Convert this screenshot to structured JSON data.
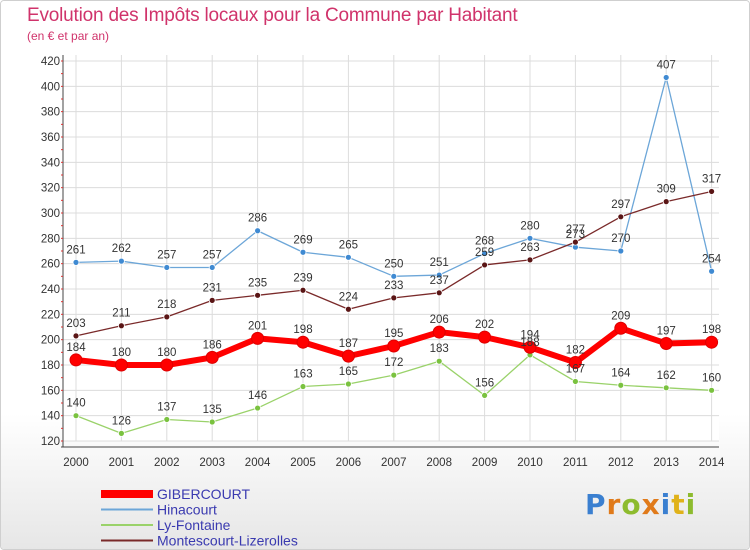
{
  "header": {
    "title": "Evolution des Impôts locaux pour la Commune par Habitant",
    "subtitle": "(en € et par an)"
  },
  "logo": {
    "p": "P",
    "r": "r",
    "o": "o",
    "x": "x",
    "i": "i",
    "t": "t",
    "i2": "i"
  },
  "chart_data": {
    "type": "line",
    "title": "Evolution des Impôts locaux pour la Commune par Habitant",
    "subtitle": "(en € et par an)",
    "xlabel": "",
    "ylabel": "",
    "ylim": [
      120,
      420
    ],
    "yticks": [
      120,
      140,
      160,
      180,
      200,
      220,
      240,
      260,
      280,
      300,
      320,
      340,
      360,
      380,
      400,
      420
    ],
    "grid": true,
    "legend_position": "bottom-left",
    "x": [
      "2000",
      "2001",
      "2002",
      "2003",
      "2004",
      "2005",
      "2006",
      "2007",
      "2008",
      "2009",
      "2010",
      "2011",
      "2012",
      "2013",
      "2014"
    ],
    "series": [
      {
        "name": "GIBERCOURT",
        "color": "#ff0000",
        "labelColor": "#333333",
        "emphasis": true,
        "values": [
          184,
          180,
          180,
          186,
          201,
          198,
          187,
          195,
          206,
          202,
          194,
          182,
          209,
          197,
          198
        ]
      },
      {
        "name": "Hinacourt",
        "color": "#6ca6d8",
        "dot": "#3f8ad2",
        "labelColor": "#333333",
        "values": [
          261,
          262,
          257,
          257,
          286,
          269,
          265,
          250,
          251,
          268,
          280,
          273,
          270,
          407,
          254
        ]
      },
      {
        "name": "Ly-Fontaine",
        "color": "#9ad26a",
        "dot": "#7ac23f",
        "labelColor": "#333333",
        "values": [
          140,
          126,
          137,
          135,
          146,
          163,
          165,
          172,
          183,
          156,
          188,
          167,
          164,
          162,
          160
        ]
      },
      {
        "name": "Montescourt-Lizerolles",
        "color": "#7a2a2a",
        "dot": "#5a1515",
        "labelColor": "#333333",
        "values": [
          203,
          211,
          218,
          231,
          235,
          239,
          224,
          233,
          237,
          259,
          263,
          277,
          297,
          309,
          317
        ]
      }
    ]
  }
}
